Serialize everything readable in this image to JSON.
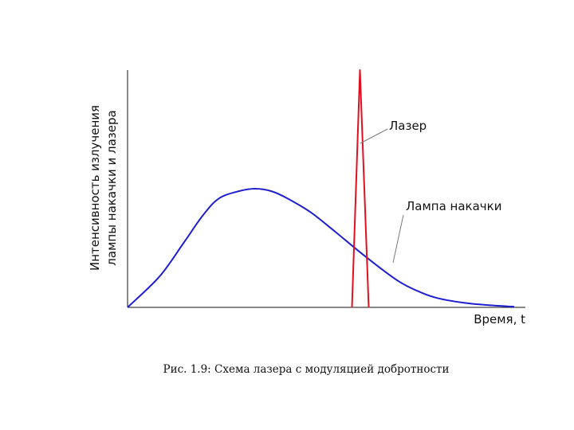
{
  "chart_data": {
    "type": "line",
    "xlabel": "Время, t",
    "ylabel_lines": [
      "Интенсивность излучения",
      "лампы накачки и лазера"
    ],
    "caption": "Рис. 1.9: Схема лазера с модуляцией добротности",
    "xlim": [
      0,
      100
    ],
    "ylim": [
      0,
      100
    ],
    "grid": false,
    "series": [
      {
        "name": "Лампа накачки",
        "color": "#1f1fd2",
        "x": [
          0,
          8,
          14,
          19,
          23,
          28,
          32,
          36,
          40,
          46,
          52,
          60,
          68,
          74,
          78,
          84,
          90,
          97
        ],
        "y": [
          0,
          13,
          27,
          39,
          46,
          49,
          50,
          49,
          46,
          40,
          32,
          21,
          11,
          6,
          3.8,
          2,
          1,
          0.3
        ]
      },
      {
        "name": "Лазер",
        "color": "#e01020",
        "x": [
          56.3,
          58.3,
          60.5
        ],
        "y": [
          0,
          100,
          0
        ]
      }
    ],
    "annotations": [
      {
        "text": "Лазер",
        "series": "Лазер"
      },
      {
        "text": "Лампа накачки",
        "series": "Лампа накачки"
      }
    ]
  },
  "colors": {
    "axis": "#111111",
    "leader": "#7a7a7a"
  }
}
